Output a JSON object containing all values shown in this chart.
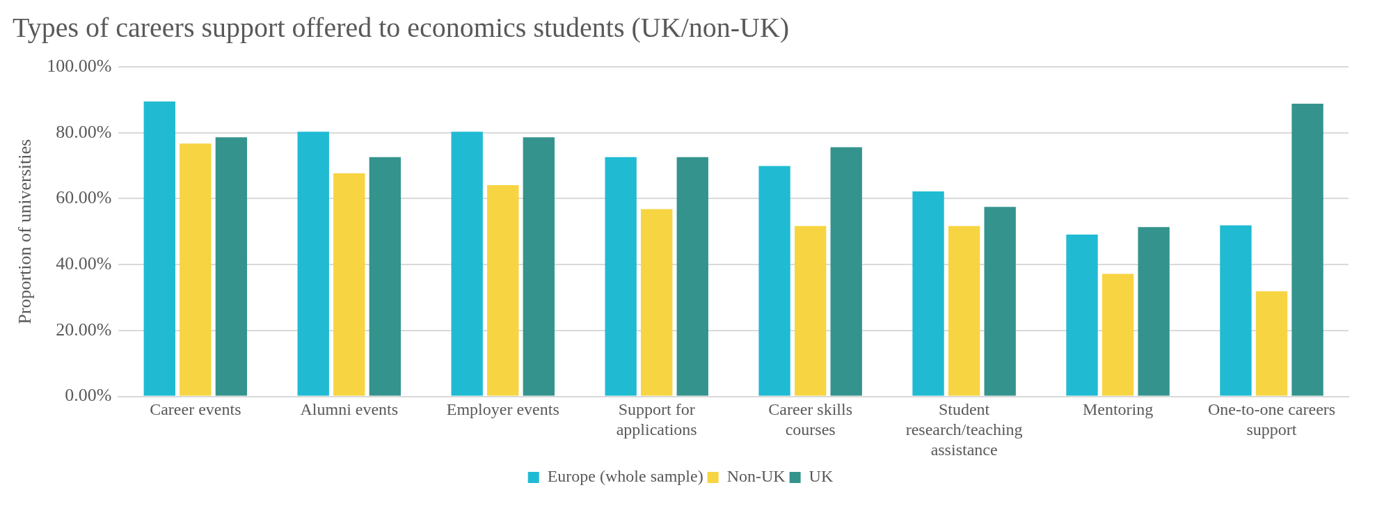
{
  "chart_data": {
    "type": "bar",
    "title": "Types of careers support offered to economics students (UK/non-UK)",
    "ylabel": "Proportion of universities",
    "categories": [
      "Career events",
      "Alumni events",
      "Employer events",
      "Support for applications",
      "Career skills courses",
      "Student research/teaching assistance",
      "Mentoring",
      "One-to-one careers support"
    ],
    "series": [
      {
        "name": "Europe (whole sample)",
        "color": "#20bbd3",
        "values": [
          89.5,
          80.3,
          80.3,
          72.6,
          69.9,
          62.2,
          49.1,
          51.9
        ]
      },
      {
        "name": "Non-UK",
        "color": "#f7d442",
        "values": [
          76.7,
          67.7,
          64.1,
          56.8,
          51.7,
          51.7,
          37.2,
          31.9
        ]
      },
      {
        "name": "UK",
        "color": "#35938d",
        "values": [
          78.6,
          72.6,
          78.6,
          72.6,
          75.6,
          57.5,
          51.4,
          88.8
        ]
      }
    ],
    "ylim": [
      0,
      100
    ],
    "yticks": [
      {
        "value": 0,
        "label": "0.00%"
      },
      {
        "value": 20,
        "label": "20.00%"
      },
      {
        "value": 40,
        "label": "40.00%"
      },
      {
        "value": 60,
        "label": "60.00%"
      },
      {
        "value": 80,
        "label": "80.00%"
      },
      {
        "value": 100,
        "label": "100.00%"
      }
    ],
    "grid": "y",
    "legend": "bottom"
  }
}
